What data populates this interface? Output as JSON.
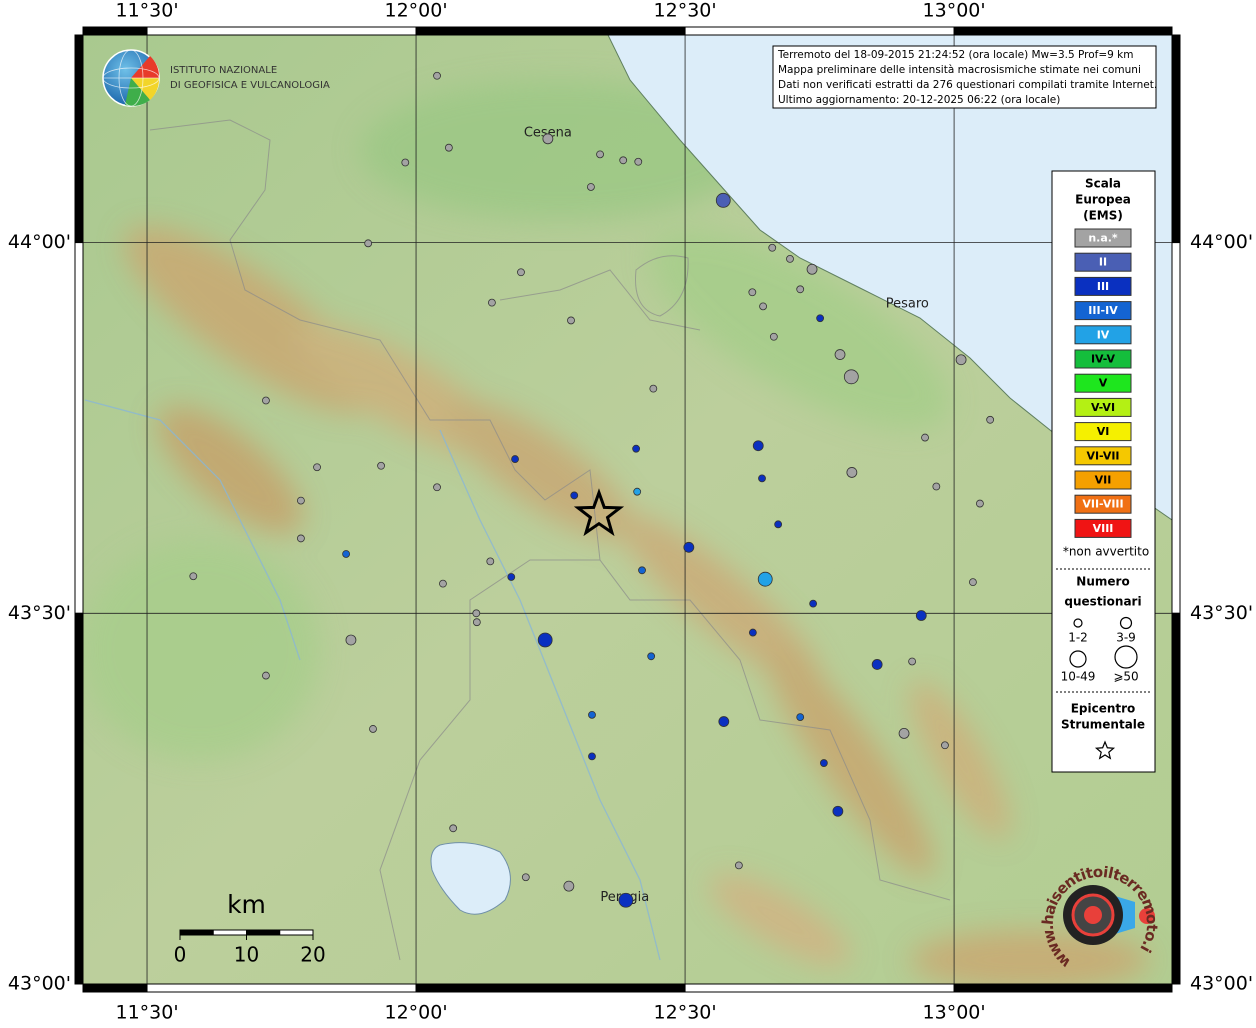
{
  "chart_data": {
    "type": "map",
    "xlim": [
      11.381,
      13.405
    ],
    "ylim": [
      43.0,
      44.28
    ],
    "xticks": [
      {
        "value": 11.5,
        "label": "11°30'"
      },
      {
        "value": 12.0,
        "label": "12°00'"
      },
      {
        "value": 12.5,
        "label": "12°30'"
      },
      {
        "value": 13.0,
        "label": "13°00'"
      }
    ],
    "yticks": [
      {
        "value": 44.0,
        "label": "44°00'"
      },
      {
        "value": 43.5,
        "label": "43°30'"
      },
      {
        "value": 43.0,
        "label": "43°00'"
      }
    ],
    "grid": true,
    "info": [
      "Terremoto del 18-09-2015 21:24:52 (ora locale) Mw=3.5 Prof=9 km",
      "Mappa preliminare delle intensità macrosismiche stimate nei comuni",
      "Dati non verificati estratti da 276 questionari compilati tramite Internet.",
      "Ultimo aggiornamento: 20-12-2025 06:22 (ora locale)"
    ],
    "institute": [
      "ISTITUTO NAZIONALE",
      "DI GEOFISICA E VULCANOLOGIA"
    ],
    "site": "www.haisentitoilterremoto.it",
    "cities": [
      {
        "name": "Cesena",
        "lon": 12.245,
        "lat": 44.148
      },
      {
        "name": "Pesaro",
        "lon": 12.913,
        "lat": 43.917
      },
      {
        "name": "Perugia",
        "lon": 12.388,
        "lat": 43.117
      }
    ],
    "legend": {
      "title": [
        "Scala",
        "Europea",
        "(EMS)"
      ],
      "scale": [
        {
          "label": "n.a.*",
          "color": "#a3a3a3"
        },
        {
          "label": "II",
          "color": "#4a5fb4"
        },
        {
          "label": "III",
          "color": "#0a30c0"
        },
        {
          "label": "III-IV",
          "color": "#1464d2"
        },
        {
          "label": "IV",
          "color": "#22a2e6"
        },
        {
          "label": "IV-V",
          "color": "#14be3c"
        },
        {
          "label": "V",
          "color": "#1ee61e"
        },
        {
          "label": "V-VI",
          "color": "#b4f014"
        },
        {
          "label": "VI",
          "color": "#f5f000"
        },
        {
          "label": "VI-VII",
          "color": "#f5c800"
        },
        {
          "label": "VII",
          "color": "#f5a000"
        },
        {
          "label": "VII-VIII",
          "color": "#f07014"
        },
        {
          "label": "VIII",
          "color": "#f01414"
        }
      ],
      "note": "*non avvertito",
      "size_title": [
        "Numero",
        "questionari"
      ],
      "sizes": [
        "1-2",
        "3-9",
        "10-49",
        "⩾50"
      ],
      "epicentre_title": [
        "Epicentro",
        "Strumentale"
      ]
    },
    "epicentre": {
      "lon": 12.34,
      "lat": 43.633
    },
    "scalebar": {
      "unit": "km",
      "ticks": [
        0,
        10,
        20
      ]
    },
    "points": [
      {
        "lon": 12.039,
        "lat": 44.225,
        "ems": "n.a.*",
        "n": "1-2"
      },
      {
        "lon": 12.245,
        "lat": 44.14,
        "ems": "n.a.*",
        "n": "3-9"
      },
      {
        "lon": 12.061,
        "lat": 44.128,
        "ems": "n.a.*",
        "n": "1-2"
      },
      {
        "lon": 11.98,
        "lat": 44.108,
        "ems": "n.a.*",
        "n": "1-2"
      },
      {
        "lon": 12.342,
        "lat": 44.119,
        "ems": "n.a.*",
        "n": "1-2"
      },
      {
        "lon": 12.385,
        "lat": 44.111,
        "ems": "n.a.*",
        "n": "1-2"
      },
      {
        "lon": 12.413,
        "lat": 44.109,
        "ems": "n.a.*",
        "n": "1-2"
      },
      {
        "lon": 12.325,
        "lat": 44.075,
        "ems": "n.a.*",
        "n": "1-2"
      },
      {
        "lon": 12.571,
        "lat": 44.057,
        "ems": "II",
        "n": "10-49"
      },
      {
        "lon": 11.911,
        "lat": 43.999,
        "ems": "n.a.*",
        "n": "1-2"
      },
      {
        "lon": 12.195,
        "lat": 43.96,
        "ems": "n.a.*",
        "n": "1-2"
      },
      {
        "lon": 12.662,
        "lat": 43.993,
        "ems": "n.a.*",
        "n": "1-2"
      },
      {
        "lon": 12.695,
        "lat": 43.978,
        "ems": "n.a.*",
        "n": "1-2"
      },
      {
        "lon": 12.736,
        "lat": 43.964,
        "ems": "n.a.*",
        "n": "3-9"
      },
      {
        "lon": 12.625,
        "lat": 43.933,
        "ems": "n.a.*",
        "n": "1-2"
      },
      {
        "lon": 12.714,
        "lat": 43.937,
        "ems": "n.a.*",
        "n": "1-2"
      },
      {
        "lon": 12.645,
        "lat": 43.914,
        "ems": "n.a.*",
        "n": "1-2"
      },
      {
        "lon": 12.141,
        "lat": 43.919,
        "ems": "n.a.*",
        "n": "1-2"
      },
      {
        "lon": 12.288,
        "lat": 43.895,
        "ems": "n.a.*",
        "n": "1-2"
      },
      {
        "lon": 12.751,
        "lat": 43.898,
        "ems": "III",
        "n": "1-2"
      },
      {
        "lon": 12.665,
        "lat": 43.873,
        "ems": "n.a.*",
        "n": "1-2"
      },
      {
        "lon": 12.788,
        "lat": 43.849,
        "ems": "n.a.*",
        "n": "3-9"
      },
      {
        "lon": 12.809,
        "lat": 43.819,
        "ems": "n.a.*",
        "n": "10-49"
      },
      {
        "lon": 13.013,
        "lat": 43.842,
        "ems": "n.a.*",
        "n": "3-9"
      },
      {
        "lon": 12.441,
        "lat": 43.803,
        "ems": "n.a.*",
        "n": "1-2"
      },
      {
        "lon": 11.721,
        "lat": 43.787,
        "ems": "n.a.*",
        "n": "1-2"
      },
      {
        "lon": 13.067,
        "lat": 43.761,
        "ems": "n.a.*",
        "n": "1-2"
      },
      {
        "lon": 12.946,
        "lat": 43.737,
        "ems": "n.a.*",
        "n": "1-2"
      },
      {
        "lon": 12.636,
        "lat": 43.726,
        "ems": "III",
        "n": "3-9"
      },
      {
        "lon": 12.409,
        "lat": 43.722,
        "ems": "III",
        "n": "1-2"
      },
      {
        "lon": 12.184,
        "lat": 43.708,
        "ems": "III",
        "n": "1-2"
      },
      {
        "lon": 11.935,
        "lat": 43.699,
        "ems": "n.a.*",
        "n": "1-2"
      },
      {
        "lon": 11.816,
        "lat": 43.697,
        "ems": "n.a.*",
        "n": "1-2"
      },
      {
        "lon": 12.81,
        "lat": 43.69,
        "ems": "n.a.*",
        "n": "3-9"
      },
      {
        "lon": 12.643,
        "lat": 43.682,
        "ems": "III",
        "n": "1-2"
      },
      {
        "lon": 12.039,
        "lat": 43.67,
        "ems": "n.a.*",
        "n": "1-2"
      },
      {
        "lon": 12.967,
        "lat": 43.671,
        "ems": "n.a.*",
        "n": "1-2"
      },
      {
        "lon": 12.294,
        "lat": 43.659,
        "ems": "III",
        "n": "1-2"
      },
      {
        "lon": 12.411,
        "lat": 43.664,
        "ems": "IV",
        "n": "1-2"
      },
      {
        "lon": 11.786,
        "lat": 43.652,
        "ems": "n.a.*",
        "n": "1-2"
      },
      {
        "lon": 13.048,
        "lat": 43.648,
        "ems": "n.a.*",
        "n": "1-2"
      },
      {
        "lon": 12.673,
        "lat": 43.62,
        "ems": "III",
        "n": "1-2"
      },
      {
        "lon": 11.786,
        "lat": 43.601,
        "ems": "n.a.*",
        "n": "1-2"
      },
      {
        "lon": 12.507,
        "lat": 43.589,
        "ems": "III",
        "n": "3-9"
      },
      {
        "lon": 11.87,
        "lat": 43.58,
        "ems": "III-IV",
        "n": "1-2"
      },
      {
        "lon": 12.138,
        "lat": 43.57,
        "ems": "n.a.*",
        "n": "1-2"
      },
      {
        "lon": 12.42,
        "lat": 43.558,
        "ems": "III-IV",
        "n": "1-2"
      },
      {
        "lon": 12.177,
        "lat": 43.549,
        "ems": "III",
        "n": "1-2"
      },
      {
        "lon": 12.649,
        "lat": 43.546,
        "ems": "IV",
        "n": "10-49"
      },
      {
        "lon": 11.586,
        "lat": 43.55,
        "ems": "n.a.*",
        "n": "1-2"
      },
      {
        "lon": 12.05,
        "lat": 43.54,
        "ems": "n.a.*",
        "n": "1-2"
      },
      {
        "lon": 13.035,
        "lat": 43.542,
        "ems": "n.a.*",
        "n": "1-2"
      },
      {
        "lon": 12.738,
        "lat": 43.513,
        "ems": "III",
        "n": "1-2"
      },
      {
        "lon": 12.112,
        "lat": 43.5,
        "ems": "n.a.*",
        "n": "1-2"
      },
      {
        "lon": 12.939,
        "lat": 43.497,
        "ems": "III",
        "n": "3-9"
      },
      {
        "lon": 12.113,
        "lat": 43.488,
        "ems": "n.a.*",
        "n": "1-2"
      },
      {
        "lon": 11.879,
        "lat": 43.464,
        "ems": "n.a.*",
        "n": "3-9"
      },
      {
        "lon": 12.24,
        "lat": 43.464,
        "ems": "III",
        "n": "10-49"
      },
      {
        "lon": 12.626,
        "lat": 43.474,
        "ems": "III",
        "n": "1-2"
      },
      {
        "lon": 12.437,
        "lat": 43.442,
        "ems": "III-IV",
        "n": "1-2"
      },
      {
        "lon": 12.857,
        "lat": 43.431,
        "ems": "III",
        "n": "3-9"
      },
      {
        "lon": 12.922,
        "lat": 43.435,
        "ems": "n.a.*",
        "n": "1-2"
      },
      {
        "lon": 11.721,
        "lat": 43.416,
        "ems": "n.a.*",
        "n": "1-2"
      },
      {
        "lon": 12.327,
        "lat": 43.363,
        "ems": "III-IV",
        "n": "1-2"
      },
      {
        "lon": 12.572,
        "lat": 43.354,
        "ems": "III",
        "n": "3-9"
      },
      {
        "lon": 12.714,
        "lat": 43.36,
        "ems": "III-IV",
        "n": "1-2"
      },
      {
        "lon": 11.92,
        "lat": 43.344,
        "ems": "n.a.*",
        "n": "1-2"
      },
      {
        "lon": 12.907,
        "lat": 43.338,
        "ems": "n.a.*",
        "n": "3-9"
      },
      {
        "lon": 12.983,
        "lat": 43.322,
        "ems": "n.a.*",
        "n": "1-2"
      },
      {
        "lon": 12.327,
        "lat": 43.307,
        "ems": "III",
        "n": "1-2"
      },
      {
        "lon": 12.758,
        "lat": 43.298,
        "ems": "III",
        "n": "1-2"
      },
      {
        "lon": 12.784,
        "lat": 43.233,
        "ems": "III",
        "n": "3-9"
      },
      {
        "lon": 12.069,
        "lat": 43.21,
        "ems": "n.a.*",
        "n": "1-2"
      },
      {
        "lon": 12.6,
        "lat": 43.16,
        "ems": "n.a.*",
        "n": "1-2"
      },
      {
        "lon": 12.204,
        "lat": 43.144,
        "ems": "n.a.*",
        "n": "1-2"
      },
      {
        "lon": 12.284,
        "lat": 43.132,
        "ems": "n.a.*",
        "n": "3-9"
      },
      {
        "lon": 12.39,
        "lat": 43.113,
        "ems": "III",
        "n": "10-49"
      }
    ]
  }
}
